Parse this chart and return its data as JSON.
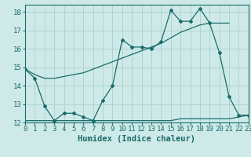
{
  "xlabel": "Humidex (Indice chaleur)",
  "bg_color": "#ceeae8",
  "grid_color": "#afd4d0",
  "line_color": "#1a6b6b",
  "x_min": 0,
  "x_max": 23,
  "y_min": 12,
  "y_max": 18.4,
  "series1_x": [
    0,
    1,
    2,
    3,
    4,
    5,
    6,
    7,
    8,
    9,
    10,
    11,
    12,
    13,
    14,
    15,
    16,
    17,
    18,
    19,
    20,
    21
  ],
  "series1_y": [
    14.9,
    14.6,
    14.4,
    14.4,
    14.5,
    14.6,
    14.7,
    14.9,
    15.1,
    15.3,
    15.5,
    15.7,
    15.9,
    16.1,
    16.3,
    16.6,
    16.9,
    17.1,
    17.3,
    17.4,
    17.4,
    17.4
  ],
  "series2_x": [
    0,
    1,
    2,
    3,
    4,
    5,
    6,
    7,
    8,
    9,
    10,
    11,
    12,
    13,
    14,
    15,
    16,
    17,
    18,
    19,
    20,
    21,
    22,
    23
  ],
  "series2_y": [
    14.9,
    14.4,
    12.9,
    12.1,
    12.5,
    12.5,
    12.3,
    12.1,
    13.2,
    14.0,
    16.5,
    16.1,
    16.1,
    16.0,
    16.4,
    18.1,
    17.5,
    17.5,
    18.2,
    17.4,
    15.8,
    13.4,
    12.4,
    12.4
  ],
  "series3_x": [
    0,
    1,
    2,
    3,
    4,
    5,
    6,
    7,
    8,
    9,
    10,
    11,
    12,
    13,
    14,
    15,
    16,
    17,
    18,
    19,
    20,
    21,
    22,
    23
  ],
  "series3_y": [
    12.1,
    12.1,
    12.1,
    12.1,
    12.1,
    12.1,
    12.1,
    12.1,
    12.1,
    12.1,
    12.1,
    12.1,
    12.1,
    12.1,
    12.1,
    12.1,
    12.2,
    12.2,
    12.2,
    12.2,
    12.2,
    12.2,
    12.3,
    12.4
  ],
  "yticks": [
    12,
    13,
    14,
    15,
    16,
    17,
    18
  ],
  "xticks": [
    0,
    1,
    2,
    3,
    4,
    5,
    6,
    7,
    8,
    9,
    10,
    11,
    12,
    13,
    14,
    15,
    16,
    17,
    18,
    19,
    20,
    21,
    22,
    23
  ],
  "tick_fontsize": 6.5,
  "xlabel_fontsize": 7.5
}
